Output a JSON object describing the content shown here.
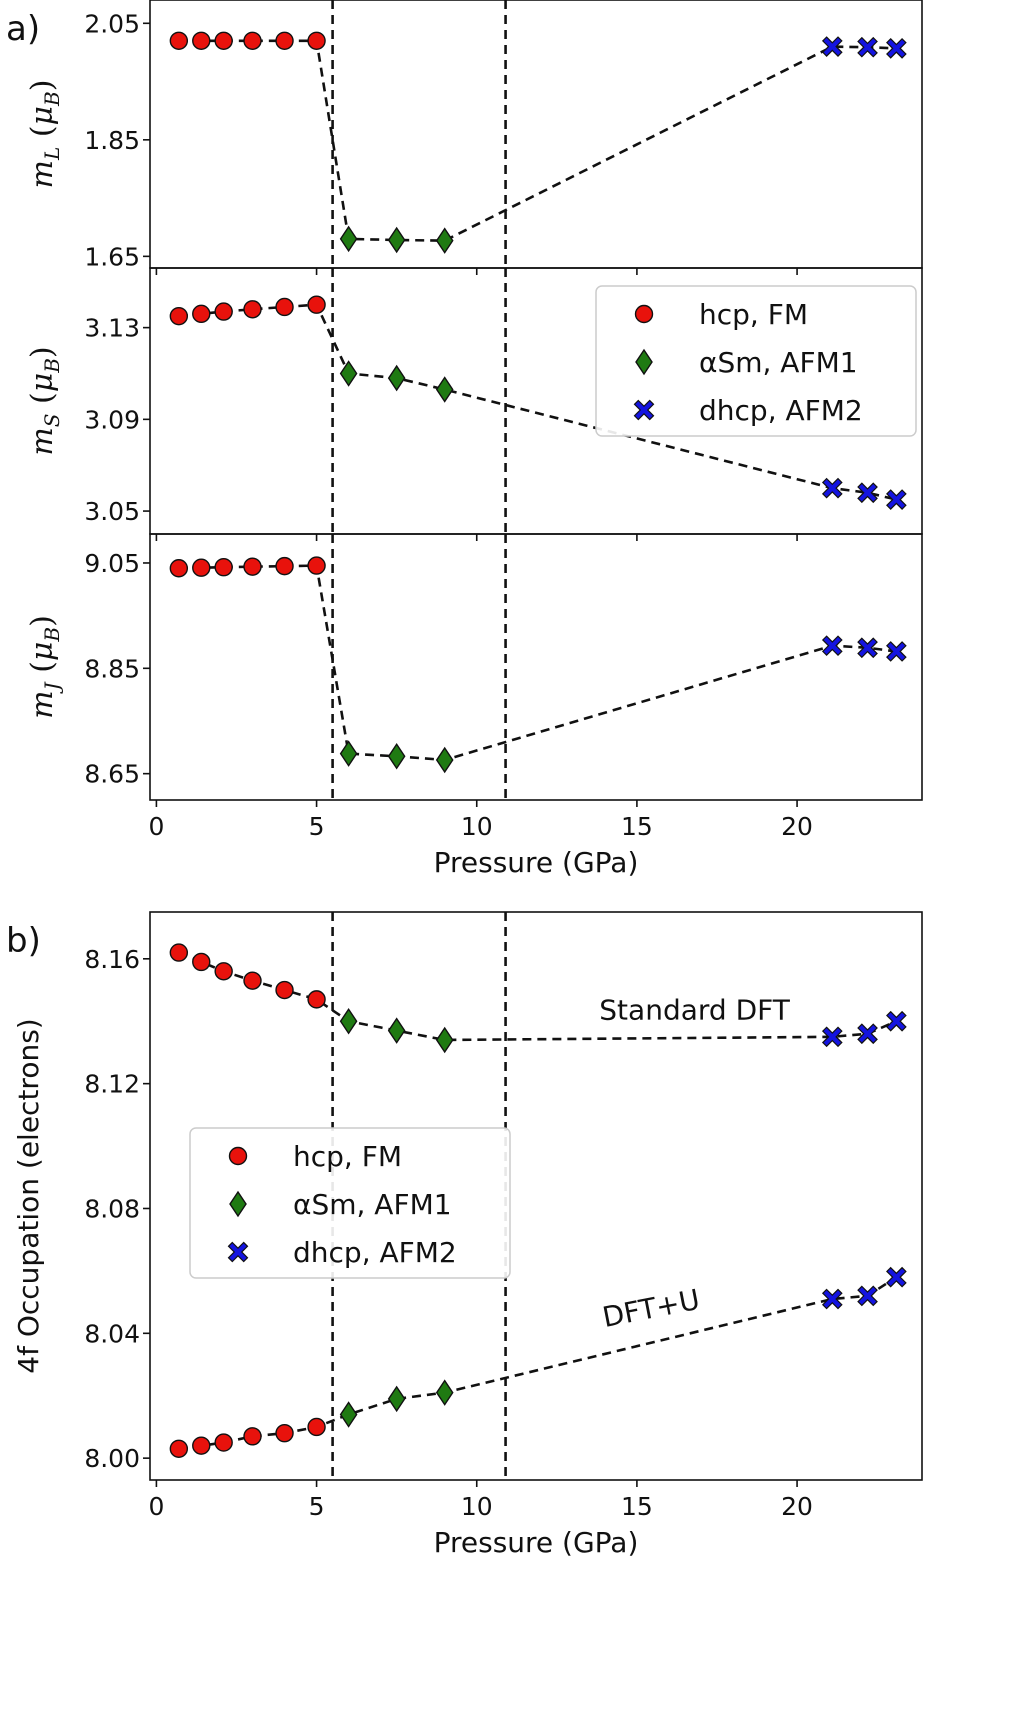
{
  "chart_data": [
    {
      "id": "a-top",
      "panel_label": "a)",
      "type": "scatter",
      "ylabel": "m_L (μ_B)",
      "ylim": [
        1.63,
        2.09
      ],
      "yticks": [
        2.05,
        1.85,
        1.65
      ],
      "ytick_labels": [
        "2.05",
        "1.85",
        "1.65"
      ],
      "xlim": [
        -0.2,
        23.9
      ],
      "xticks": [
        0,
        5,
        10,
        15,
        20
      ],
      "xtick_labels": [],
      "xlabel": "",
      "vlines": [
        5.5,
        10.9
      ],
      "series": [
        {
          "name": "hcp, FM",
          "x": [
            0.7,
            1.4,
            2.1,
            3.0,
            4.0,
            5.0
          ],
          "y": [
            2.02,
            2.02,
            2.02,
            2.02,
            2.02,
            2.02
          ]
        },
        {
          "name": "αSm, AFM1",
          "x": [
            6.0,
            7.5,
            9.0
          ],
          "y": [
            1.68,
            1.678,
            1.677
          ]
        },
        {
          "name": "dhcp, AFM2",
          "x": [
            21.1,
            22.2,
            23.1
          ],
          "y": [
            2.01,
            2.009,
            2.007
          ]
        }
      ]
    },
    {
      "id": "a-mid",
      "type": "scatter",
      "ylabel": "m_S (μ_B)",
      "ylim": [
        3.04,
        3.156
      ],
      "yticks": [
        3.13,
        3.09,
        3.05
      ],
      "ytick_labels": [
        "3.13",
        "3.09",
        "3.05"
      ],
      "xlim": [
        -0.2,
        23.9
      ],
      "xticks": [
        0,
        5,
        10,
        15,
        20
      ],
      "xtick_labels": [],
      "xlabel": "",
      "vlines": [
        5.5,
        10.9
      ],
      "legend": {
        "position": "upper-right"
      },
      "series": [
        {
          "name": "hcp, FM",
          "x": [
            0.7,
            1.4,
            2.1,
            3.0,
            4.0,
            5.0
          ],
          "y": [
            3.135,
            3.136,
            3.137,
            3.138,
            3.139,
            3.14
          ]
        },
        {
          "name": "αSm, AFM1",
          "x": [
            6.0,
            7.5,
            9.0
          ],
          "y": [
            3.11,
            3.108,
            3.103
          ]
        },
        {
          "name": "dhcp, AFM2",
          "x": [
            21.1,
            22.2,
            23.1
          ],
          "y": [
            3.06,
            3.058,
            3.055
          ]
        }
      ]
    },
    {
      "id": "a-bot",
      "type": "scatter",
      "ylabel": "m_J (μ_B)",
      "ylim": [
        8.6,
        9.105
      ],
      "yticks": [
        9.05,
        8.85,
        8.65
      ],
      "ytick_labels": [
        "9.05",
        "8.85",
        "8.65"
      ],
      "xlim": [
        -0.2,
        23.9
      ],
      "xticks": [
        0,
        5,
        10,
        15,
        20
      ],
      "xtick_labels": [
        "0",
        "5",
        "10",
        "15",
        "20"
      ],
      "xlabel": "Pressure (GPa)",
      "vlines": [
        5.5,
        10.9
      ],
      "series": [
        {
          "name": "hcp, FM",
          "x": [
            0.7,
            1.4,
            2.1,
            3.0,
            4.0,
            5.0
          ],
          "y": [
            9.04,
            9.041,
            9.042,
            9.043,
            9.044,
            9.045
          ]
        },
        {
          "name": "αSm, AFM1",
          "x": [
            6.0,
            7.5,
            9.0
          ],
          "y": [
            8.688,
            8.683,
            8.676
          ]
        },
        {
          "name": "dhcp, AFM2",
          "x": [
            21.1,
            22.2,
            23.1
          ],
          "y": [
            8.893,
            8.889,
            8.882
          ]
        }
      ]
    },
    {
      "id": "b",
      "panel_label": "b)",
      "type": "scatter",
      "ylabel": "4f Occupation (electrons)",
      "ylim": [
        7.993,
        8.175
      ],
      "yticks": [
        8.16,
        8.12,
        8.08,
        8.04,
        8.0
      ],
      "ytick_labels": [
        "8.16",
        "8.12",
        "8.08",
        "8.04",
        "8.00"
      ],
      "xlim": [
        -0.2,
        23.9
      ],
      "xticks": [
        0,
        5,
        10,
        15,
        20
      ],
      "xtick_labels": [
        "0",
        "5",
        "10",
        "15",
        "20"
      ],
      "xlabel": "Pressure (GPa)",
      "vlines": [
        5.5,
        10.9
      ],
      "legend": {
        "position": "center-left"
      },
      "annotations": [
        {
          "text": "Standard DFT",
          "x": 16.8,
          "y": 8.1405
        },
        {
          "text": "DFT+U",
          "x": 15.5,
          "y": 8.045
        }
      ],
      "groups": [
        {
          "series": [
            {
              "name": "hcp, FM",
              "x": [
                0.7,
                1.4,
                2.1,
                3.0,
                4.0,
                5.0
              ],
              "y": [
                8.162,
                8.159,
                8.156,
                8.153,
                8.15,
                8.147
              ]
            },
            {
              "name": "αSm, AFM1",
              "x": [
                6.0,
                7.5,
                9.0
              ],
              "y": [
                8.14,
                8.137,
                8.134
              ]
            },
            {
              "name": "dhcp, AFM2",
              "x": [
                21.1,
                22.2,
                23.1
              ],
              "y": [
                8.135,
                8.136,
                8.14
              ]
            }
          ]
        },
        {
          "series": [
            {
              "name": "hcp, FM",
              "x": [
                0.7,
                1.4,
                2.1,
                3.0,
                4.0,
                5.0
              ],
              "y": [
                8.003,
                8.004,
                8.005,
                8.007,
                8.008,
                8.01
              ]
            },
            {
              "name": "αSm, AFM1",
              "x": [
                6.0,
                7.5,
                9.0
              ],
              "y": [
                8.014,
                8.019,
                8.021
              ]
            },
            {
              "name": "dhcp, AFM2",
              "x": [
                21.1,
                22.2,
                23.1
              ],
              "y": [
                8.051,
                8.052,
                8.058
              ]
            }
          ]
        }
      ]
    }
  ],
  "legend_entries": [
    {
      "label": "hcp, FM",
      "marker": "circle",
      "color": "#e8120c"
    },
    {
      "label": "αSm, AFM1",
      "marker": "diamond",
      "color": "#1f7a12"
    },
    {
      "label": "dhcp, AFM2",
      "marker": "x",
      "color": "#1414e0"
    }
  ],
  "colors": {
    "hcp": "#e8120c",
    "alpha": "#1f7a12",
    "dhcp": "#1414e0",
    "edge": "#111111"
  }
}
